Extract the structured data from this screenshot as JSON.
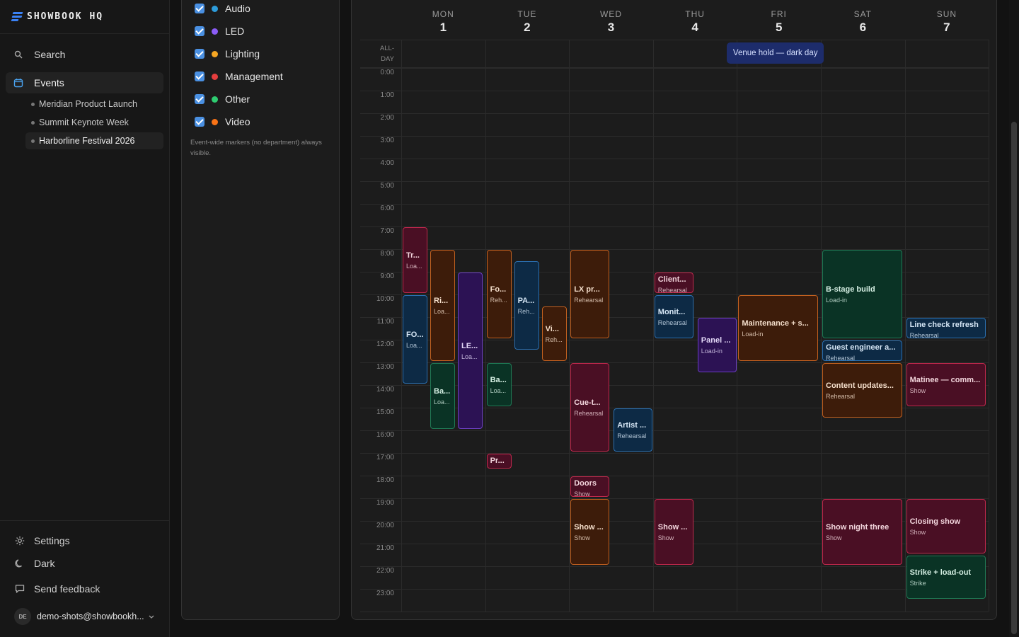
{
  "sidebar": {
    "brand": "SHOWBOOK HQ",
    "search_label": "Search",
    "events_label": "Events",
    "events": [
      {
        "label": "Meridian Product Launch",
        "active": false
      },
      {
        "label": "Summit Keynote Week",
        "active": false
      },
      {
        "label": "Harborline Festival 2026",
        "active": true
      }
    ],
    "settings_label": "Settings",
    "theme_label": "Dark",
    "feedback_label": "Send feedback",
    "user": {
      "initials": "DE",
      "email": "demo-shots@showbookh..."
    }
  },
  "filters": {
    "departments": [
      {
        "label": "Audio",
        "color": "#2d9cdb",
        "checked": true
      },
      {
        "label": "LED",
        "color": "#8b5cf6",
        "checked": true
      },
      {
        "label": "Lighting",
        "color": "#f5a623",
        "checked": true
      },
      {
        "label": "Management",
        "color": "#e53e3e",
        "checked": true
      },
      {
        "label": "Other",
        "color": "#2ecc71",
        "checked": true
      },
      {
        "label": "Video",
        "color": "#f97316",
        "checked": true
      }
    ],
    "note": "Event-wide markers (no department) always visible."
  },
  "calendar": {
    "allday_label": "ALL-\nDAY",
    "days": [
      {
        "name": "MON",
        "num": "1"
      },
      {
        "name": "TUE",
        "num": "2"
      },
      {
        "name": "WED",
        "num": "3"
      },
      {
        "name": "THU",
        "num": "4"
      },
      {
        "name": "FRI",
        "num": "5"
      },
      {
        "name": "SAT",
        "num": "6"
      },
      {
        "name": "SUN",
        "num": "7"
      }
    ],
    "hours": [
      "0:00",
      "1:00",
      "2:00",
      "3:00",
      "4:00",
      "5:00",
      "6:00",
      "7:00",
      "8:00",
      "9:00",
      "10:00",
      "11:00",
      "12:00",
      "13:00",
      "14:00",
      "15:00",
      "16:00",
      "17:00",
      "18:00",
      "19:00",
      "20:00",
      "21:00",
      "22:00",
      "23:00"
    ],
    "allday_event": {
      "title": "Venue hold — dark day",
      "day": 4
    },
    "palette": {
      "red": {
        "bg": "#4a0f24",
        "border": "#c0284c",
        "text": "#f3d6dd"
      },
      "blue": {
        "bg": "#0d2a45",
        "border": "#2a6fb0",
        "text": "#d6e6f5"
      },
      "brown": {
        "bg": "#3d1c0a",
        "border": "#c2601f",
        "text": "#f5dfcc"
      },
      "purple": {
        "bg": "#2c1254",
        "border": "#6b3fc0",
        "text": "#e3d8f7"
      },
      "green": {
        "bg": "#0a3325",
        "border": "#1f7a55",
        "text": "#d5efe3"
      }
    },
    "events": [
      {
        "title": "Tr...",
        "sub": "Loa...",
        "day": 0,
        "start": 7,
        "end": 10,
        "col": 0,
        "cols": 3,
        "color": "red"
      },
      {
        "title": "FO...",
        "sub": "Loa...",
        "day": 0,
        "start": 10,
        "end": 14,
        "col": 0,
        "cols": 3,
        "color": "blue"
      },
      {
        "title": "Ri...",
        "sub": "Loa...",
        "day": 0,
        "start": 8,
        "end": 13,
        "col": 1,
        "cols": 3,
        "color": "brown"
      },
      {
        "title": "Ba...",
        "sub": "Loa...",
        "day": 0,
        "start": 13,
        "end": 16,
        "col": 1,
        "cols": 3,
        "color": "green"
      },
      {
        "title": "LE...",
        "sub": "Loa...",
        "day": 0,
        "start": 9,
        "end": 16,
        "col": 2,
        "cols": 3,
        "color": "purple"
      },
      {
        "title": "Fo...",
        "sub": "Reh...",
        "day": 1,
        "start": 8,
        "end": 12,
        "col": 0,
        "cols": 3,
        "color": "brown"
      },
      {
        "title": "Ba...",
        "sub": "Loa...",
        "day": 1,
        "start": 13,
        "end": 15,
        "col": 0,
        "cols": 3,
        "color": "green"
      },
      {
        "title": "Pr...",
        "sub": "",
        "day": 1,
        "start": 17,
        "end": 17.75,
        "col": 0,
        "cols": 3,
        "color": "red"
      },
      {
        "title": "PA...",
        "sub": "Reh...",
        "day": 1,
        "start": 8.5,
        "end": 12.5,
        "col": 1,
        "cols": 3,
        "color": "blue"
      },
      {
        "title": "Vi...",
        "sub": "Reh...",
        "day": 1,
        "start": 10.5,
        "end": 13,
        "col": 2,
        "cols": 3,
        "color": "brown"
      },
      {
        "title": "LX pr...",
        "sub": "Rehearsal",
        "day": 2,
        "start": 8,
        "end": 12,
        "col": 0,
        "cols": 2,
        "color": "brown"
      },
      {
        "title": "Cue-t...",
        "sub": "Rehearsal",
        "day": 2,
        "start": 13,
        "end": 17,
        "col": 0,
        "cols": 2,
        "color": "red"
      },
      {
        "title": "Doors",
        "sub": "Show",
        "day": 2,
        "start": 18,
        "end": 19,
        "col": 0,
        "cols": 2,
        "color": "red"
      },
      {
        "title": "Show ...",
        "sub": "Show",
        "day": 2,
        "start": 19,
        "end": 22,
        "col": 0,
        "cols": 2,
        "color": "brown"
      },
      {
        "title": "Artist ...",
        "sub": "Rehearsal",
        "day": 2,
        "start": 15,
        "end": 17,
        "col": 1,
        "cols": 2,
        "color": "blue"
      },
      {
        "title": "Client...",
        "sub": "Rehearsal",
        "day": 3,
        "start": 9,
        "end": 10,
        "col": 0,
        "cols": 2,
        "color": "red"
      },
      {
        "title": "Monit...",
        "sub": "Rehearsal",
        "day": 3,
        "start": 10,
        "end": 12,
        "col": 0,
        "cols": 2,
        "color": "blue"
      },
      {
        "title": "Show ...",
        "sub": "Show",
        "day": 3,
        "start": 19,
        "end": 22,
        "col": 0,
        "cols": 2,
        "color": "red"
      },
      {
        "title": "Panel ...",
        "sub": "Load-in",
        "day": 3,
        "start": 11,
        "end": 13.5,
        "col": 1,
        "cols": 2,
        "color": "purple"
      },
      {
        "title": "Maintenance + s...",
        "sub": "Load-in",
        "day": 4,
        "start": 10,
        "end": 13,
        "col": 0,
        "cols": 1,
        "color": "brown"
      },
      {
        "title": "B-stage build",
        "sub": "Load-in",
        "day": 5,
        "start": 8,
        "end": 12,
        "col": 0,
        "cols": 1,
        "color": "green"
      },
      {
        "title": "Guest engineer a...",
        "sub": "Rehearsal",
        "day": 5,
        "start": 12,
        "end": 13,
        "col": 0,
        "cols": 1,
        "color": "blue"
      },
      {
        "title": "Content updates...",
        "sub": "Rehearsal",
        "day": 5,
        "start": 13,
        "end": 15.5,
        "col": 0,
        "cols": 1,
        "color": "brown"
      },
      {
        "title": "Show night three",
        "sub": "Show",
        "day": 5,
        "start": 19,
        "end": 22,
        "col": 0,
        "cols": 1,
        "color": "red"
      },
      {
        "title": "Line check refresh",
        "sub": "Rehearsal",
        "day": 6,
        "start": 11,
        "end": 12,
        "col": 0,
        "cols": 1,
        "color": "blue"
      },
      {
        "title": "Matinee — comm...",
        "sub": "Show",
        "day": 6,
        "start": 13,
        "end": 15,
        "col": 0,
        "cols": 1,
        "color": "red"
      },
      {
        "title": "Closing show",
        "sub": "Show",
        "day": 6,
        "start": 19,
        "end": 21.5,
        "col": 0,
        "cols": 1,
        "color": "red"
      },
      {
        "title": "Strike + load-out",
        "sub": "Strike",
        "day": 6,
        "start": 21.5,
        "end": 23.5,
        "col": 0,
        "cols": 1,
        "color": "green"
      }
    ]
  }
}
